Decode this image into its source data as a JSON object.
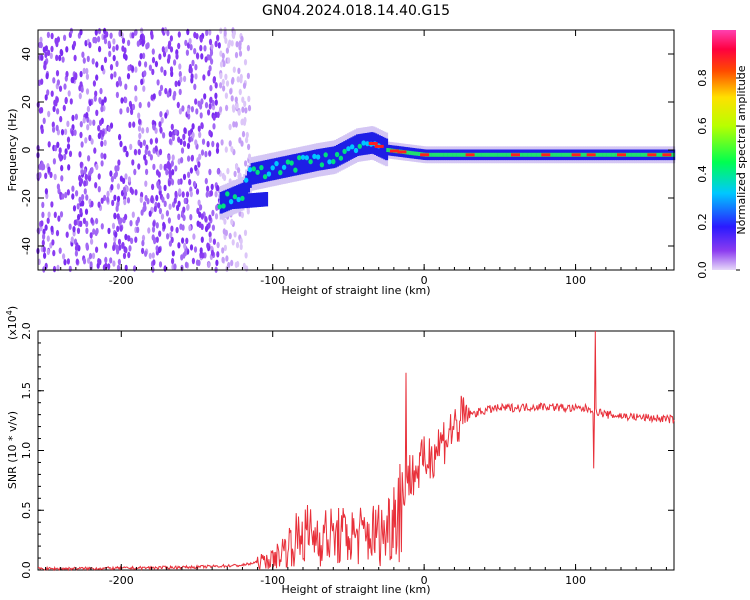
{
  "title": "GN04.2024.018.14.40.G15",
  "chart_data": [
    {
      "type": "heatmap",
      "name": "spectrogram",
      "xlabel": "Height of straight line (km)",
      "ylabel": "Frequency (Hz)",
      "xlim": [
        -255,
        165
      ],
      "ylim": [
        -50,
        50
      ],
      "xticks": [
        -200,
        -100,
        0,
        100
      ],
      "yticks": [
        -40,
        -20,
        0,
        20,
        40
      ],
      "noise_region_x": [
        -255,
        -135
      ],
      "ridge_points": [
        {
          "x": -135,
          "y": -22
        },
        {
          "x": -120,
          "y": -18
        },
        {
          "x": -115,
          "y": -10
        },
        {
          "x": -100,
          "y": -8
        },
        {
          "x": -85,
          "y": -6
        },
        {
          "x": -70,
          "y": -4
        },
        {
          "x": -60,
          "y": -3
        },
        {
          "x": -45,
          "y": 2
        },
        {
          "x": -35,
          "y": 3
        },
        {
          "x": -25,
          "y": 0
        },
        {
          "x": 0,
          "y": -2
        },
        {
          "x": 60,
          "y": -2
        },
        {
          "x": 100,
          "y": -2
        },
        {
          "x": 165,
          "y": -2
        }
      ],
      "colorbar": {
        "label": "Normalized spectral amplitude",
        "range": [
          0,
          1
        ],
        "ticks": [
          "0.0",
          "0.2",
          "0.4",
          "0.6",
          "0.8"
        ]
      }
    },
    {
      "type": "line",
      "name": "snr",
      "xlabel": "Height of straight line (km)",
      "ylabel": "SNR (10 * v/v)",
      "scale_label": "(x10",
      "scale_exponent": "4",
      "scale_suffix": ")",
      "xlim": [
        -255,
        165
      ],
      "ylim": [
        0,
        20000
      ],
      "xticks": [
        -200,
        -100,
        0,
        100
      ],
      "yticks": [
        "0.0",
        "0.5",
        "1.0",
        "1.5",
        "2.0"
      ],
      "line_color": "#e8303a",
      "series": [
        {
          "x": -255,
          "y": 100
        },
        {
          "x": -200,
          "y": 150
        },
        {
          "x": -150,
          "y": 250
        },
        {
          "x": -120,
          "y": 400
        },
        {
          "x": -100,
          "y": 900
        },
        {
          "x": -90,
          "y": 2000
        },
        {
          "x": -80,
          "y": 3000
        },
        {
          "x": -60,
          "y": 2800
        },
        {
          "x": -40,
          "y": 2900
        },
        {
          "x": -25,
          "y": 3200
        },
        {
          "x": -18,
          "y": 5500
        },
        {
          "x": -12,
          "y": 7500
        },
        {
          "x": 0,
          "y": 9000
        },
        {
          "x": 10,
          "y": 10500
        },
        {
          "x": 20,
          "y": 12000
        },
        {
          "x": 30,
          "y": 13000
        },
        {
          "x": 45,
          "y": 13500
        },
        {
          "x": 80,
          "y": 13700
        },
        {
          "x": 100,
          "y": 13500
        },
        {
          "x": 110,
          "y": 13500
        },
        {
          "x": 120,
          "y": 13000
        },
        {
          "x": 140,
          "y": 12800
        },
        {
          "x": 165,
          "y": 12600
        }
      ],
      "spikes": [
        {
          "x": -12,
          "y": 16500
        },
        {
          "x": -15,
          "y": 1500
        },
        {
          "x": 113,
          "y": 20000
        },
        {
          "x": 112,
          "y": 8500
        }
      ]
    }
  ]
}
